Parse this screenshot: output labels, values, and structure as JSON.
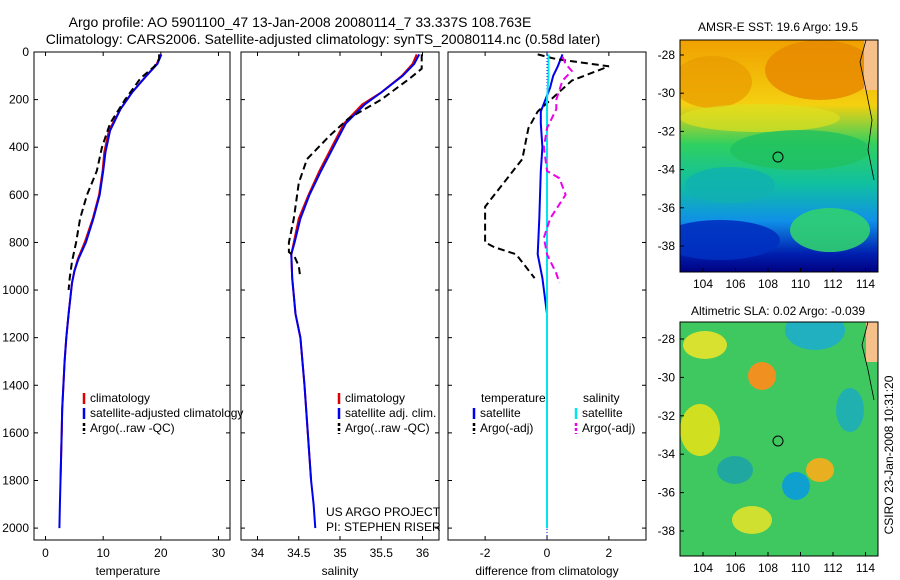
{
  "title_line1": "Argo profile: AO 5901100_47 13-Jan-2008 20080114_7 33.337S 108.763E",
  "title_line2": "Climatology: CARS2006. Satellite-adjusted climatology: synTS_20080114.nc (0.58d later)",
  "credit": "CSIRO 23-Jan-2008 10:31:20",
  "colors": {
    "clim": "#dd0000",
    "sat": "#0000ee",
    "argo": "#000000",
    "sat_sal": "#00e5ee",
    "argo_sal": "#ee00ee"
  },
  "chart_data": [
    {
      "id": "temperature",
      "type": "line",
      "xlabel": "temperature",
      "xlim": [
        -2,
        32
      ],
      "ylim": [
        0,
        2050
      ],
      "xticks": [
        0,
        10,
        20,
        30
      ],
      "yticks": [
        0,
        200,
        400,
        600,
        800,
        1000,
        1200,
        1400,
        1600,
        1800,
        2000
      ],
      "legend": [
        "climatology",
        "satellite-adjusted climatology",
        "Argo(..raw -QC)"
      ],
      "series": [
        {
          "key": "clim",
          "style": "solid",
          "points": [
            [
              20.0,
              10
            ],
            [
              19.3,
              50
            ],
            [
              17.5,
              100
            ],
            [
              15.0,
              170
            ],
            [
              13.0,
              240
            ],
            [
              11.0,
              330
            ],
            [
              10.2,
              420
            ],
            [
              9.9,
              500
            ],
            [
              9.3,
              600
            ],
            [
              8.2,
              700
            ],
            [
              6.8,
              800
            ],
            [
              5.6,
              870
            ],
            [
              5.0,
              920
            ],
            [
              4.6,
              970
            ],
            [
              4.0,
              1100
            ],
            [
              3.6,
              1200
            ],
            [
              3.3,
              1300
            ],
            [
              3.1,
              1400
            ],
            [
              2.9,
              1500
            ],
            [
              2.8,
              1600
            ],
            [
              2.7,
              1700
            ],
            [
              2.6,
              1800
            ]
          ]
        },
        {
          "key": "sat",
          "style": "solid",
          "points": [
            [
              20.1,
              10
            ],
            [
              19.4,
              50
            ],
            [
              17.5,
              100
            ],
            [
              15.0,
              170
            ],
            [
              13.0,
              240
            ],
            [
              11.2,
              330
            ],
            [
              10.4,
              420
            ],
            [
              10.0,
              500
            ],
            [
              9.4,
              600
            ],
            [
              8.3,
              700
            ],
            [
              7.0,
              800
            ],
            [
              5.7,
              870
            ],
            [
              5.0,
              920
            ],
            [
              4.6,
              970
            ],
            [
              4.0,
              1100
            ],
            [
              3.6,
              1200
            ],
            [
              3.3,
              1300
            ],
            [
              3.1,
              1400
            ],
            [
              2.9,
              1500
            ],
            [
              2.8,
              1600
            ],
            [
              2.7,
              1700
            ],
            [
              2.6,
              1800
            ],
            [
              2.5,
              1900
            ],
            [
              2.4,
              2000
            ]
          ]
        },
        {
          "key": "argo",
          "style": "dash",
          "points": [
            [
              19.7,
              10
            ],
            [
              19.7,
              30
            ],
            [
              18.9,
              60
            ],
            [
              16.5,
              110
            ],
            [
              13.8,
              200
            ],
            [
              11.2,
              300
            ],
            [
              9.8,
              400
            ],
            [
              8.9,
              500
            ],
            [
              7.2,
              600
            ],
            [
              6.0,
              700
            ],
            [
              5.3,
              800
            ],
            [
              4.6,
              880
            ],
            [
              4.2,
              950
            ],
            [
              4.0,
              1000
            ]
          ]
        }
      ],
      "annotations": []
    },
    {
      "id": "salinity",
      "type": "line",
      "xlabel": "salinity",
      "xlim": [
        33.8,
        36.2
      ],
      "ylim": [
        0,
        2050
      ],
      "xticks": [
        34,
        34.5,
        35,
        35.5,
        36
      ],
      "yticks": [
        0,
        200,
        400,
        600,
        800,
        1000,
        1200,
        1400,
        1600,
        1800,
        2000
      ],
      "legend": [
        "climatology",
        "satellite adj. clim.",
        "Argo(..raw -QC)"
      ],
      "series": [
        {
          "key": "clim",
          "style": "solid",
          "points": [
            [
              35.93,
              10
            ],
            [
              35.88,
              50
            ],
            [
              35.75,
              100
            ],
            [
              35.5,
              170
            ],
            [
              35.27,
              220
            ],
            [
              35.05,
              300
            ],
            [
              34.9,
              400
            ],
            [
              34.75,
              500
            ],
            [
              34.62,
              600
            ],
            [
              34.5,
              700
            ],
            [
              34.44,
              800
            ],
            [
              34.41,
              850
            ],
            [
              34.42,
              950
            ],
            [
              34.46,
              1100
            ],
            [
              34.52,
              1200
            ],
            [
              34.57,
              1400
            ],
            [
              34.61,
              1600
            ],
            [
              34.65,
              1800
            ]
          ]
        },
        {
          "key": "sat",
          "style": "solid",
          "points": [
            [
              35.96,
              10
            ],
            [
              35.9,
              50
            ],
            [
              35.76,
              100
            ],
            [
              35.5,
              170
            ],
            [
              35.3,
              220
            ],
            [
              35.07,
              300
            ],
            [
              34.92,
              400
            ],
            [
              34.77,
              500
            ],
            [
              34.63,
              600
            ],
            [
              34.52,
              700
            ],
            [
              34.45,
              800
            ],
            [
              34.41,
              850
            ],
            [
              34.42,
              950
            ],
            [
              34.46,
              1100
            ],
            [
              34.52,
              1200
            ],
            [
              34.57,
              1400
            ],
            [
              34.61,
              1600
            ],
            [
              34.65,
              1800
            ],
            [
              34.68,
              1900
            ],
            [
              34.7,
              2000
            ]
          ]
        },
        {
          "key": "argo",
          "style": "dash",
          "points": [
            [
              35.99,
              10
            ],
            [
              35.99,
              70
            ],
            [
              35.85,
              110
            ],
            [
              35.5,
              200
            ],
            [
              35.1,
              280
            ],
            [
              34.88,
              350
            ],
            [
              34.6,
              450
            ],
            [
              34.5,
              550
            ],
            [
              34.44,
              700
            ],
            [
              34.38,
              800
            ],
            [
              34.38,
              840
            ],
            [
              34.45,
              860
            ],
            [
              34.5,
              900
            ],
            [
              34.52,
              950
            ]
          ]
        }
      ],
      "annotations": [
        "US ARGO PROJECT",
        "PI: STEPHEN RISER"
      ]
    },
    {
      "id": "difference",
      "type": "line",
      "xlabel": "difference from climatology",
      "xlim": [
        -3.2,
        3.2
      ],
      "ylim": [
        0,
        2050
      ],
      "xticks": [
        -2,
        0,
        2
      ],
      "yticks": [
        0,
        200,
        400,
        600,
        800,
        1000,
        1200,
        1400,
        1600,
        1800,
        2000
      ],
      "legend_groups": [
        {
          "header": "temperature",
          "items": [
            "satellite",
            "Argo(-adj)"
          ]
        },
        {
          "header": "salinity",
          "items": [
            "satellite",
            "Argo(-adj)"
          ]
        }
      ],
      "series": [
        {
          "key": "sat",
          "style": "solid",
          "points": [
            [
              0.5,
              10
            ],
            [
              0.35,
              60
            ],
            [
              0.2,
              100
            ],
            [
              0.1,
              150
            ],
            [
              -0.2,
              250
            ],
            [
              -0.2,
              300
            ],
            [
              -0.15,
              400
            ],
            [
              -0.2,
              500
            ],
            [
              -0.25,
              700
            ],
            [
              -0.3,
              850
            ],
            [
              -0.15,
              950
            ],
            [
              0,
              1100
            ],
            [
              0,
              1300
            ],
            [
              0,
              2000
            ]
          ]
        },
        {
          "key": "argo",
          "style": "dash",
          "points": [
            [
              -0.3,
              10
            ],
            [
              0.3,
              30
            ],
            [
              2.0,
              60
            ],
            [
              0.8,
              120
            ],
            [
              -0.3,
              250
            ],
            [
              -0.6,
              320
            ],
            [
              -0.8,
              450
            ],
            [
              -1.4,
              550
            ],
            [
              -2.0,
              650
            ],
            [
              -2.0,
              800
            ],
            [
              -1.7,
              820
            ],
            [
              -1.0,
              850
            ],
            [
              -0.4,
              950
            ]
          ]
        },
        {
          "key": "sat_sal",
          "style": "solid",
          "points": [
            [
              0.05,
              10
            ],
            [
              0.05,
              100
            ],
            [
              0.0,
              200
            ],
            [
              0.0,
              400
            ],
            [
              0.0,
              1000
            ],
            [
              0.0,
              2000
            ]
          ]
        },
        {
          "key": "argo_sal",
          "style": "dash",
          "points": [
            [
              0.5,
              20
            ],
            [
              0.6,
              50
            ],
            [
              0.8,
              80
            ],
            [
              0.5,
              120
            ],
            [
              0.3,
              200
            ],
            [
              0.3,
              240
            ],
            [
              0.0,
              320
            ],
            [
              -0.1,
              400
            ],
            [
              0.0,
              500
            ],
            [
              0.4,
              530
            ],
            [
              0.6,
              600
            ],
            [
              0.1,
              700
            ],
            [
              -0.1,
              780
            ],
            [
              0.0,
              850
            ],
            [
              0.3,
              930
            ],
            [
              0.4,
              970
            ]
          ]
        }
      ],
      "annotations": []
    }
  ],
  "maps": [
    {
      "id": "sst",
      "title": "AMSR-E SST: 19.6 Argo: 19.5",
      "xticks": [
        "104",
        "106",
        "108",
        "110",
        "112",
        "114"
      ],
      "yticks": [
        "-28",
        "-30",
        "-32",
        "-34",
        "-36",
        "-38"
      ],
      "marker_lon": 108.763,
      "marker_lat": -33.337
    },
    {
      "id": "sla",
      "title": "Altimetric SLA: 0.02 Argo: -0.039",
      "xticks": [
        "104",
        "106",
        "108",
        "110",
        "112",
        "114"
      ],
      "yticks": [
        "-28",
        "-30",
        "-32",
        "-34",
        "-36",
        "-38"
      ],
      "marker_lon": 108.763,
      "marker_lat": -33.337
    }
  ]
}
